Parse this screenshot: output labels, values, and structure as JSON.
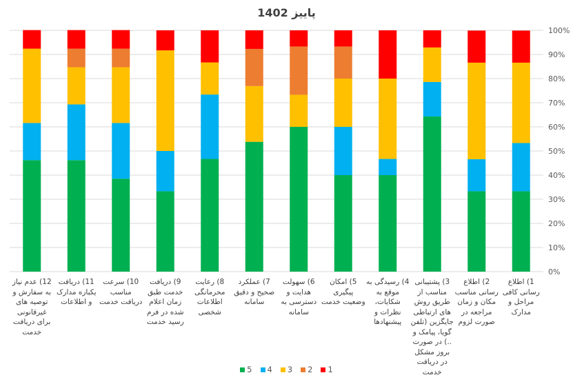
{
  "chart_data": {
    "type": "bar",
    "stacked": true,
    "percent_stacked": true,
    "title": "پاییز 1402",
    "xlabel": "",
    "ylabel": "",
    "ylim": [
      0,
      100
    ],
    "y_ticks": [
      "0%",
      "10%",
      "20%",
      "30%",
      "40%",
      "50%",
      "60%",
      "70%",
      "80%",
      "90%",
      "100%"
    ],
    "y_axis_position": "right",
    "grid": true,
    "legend_position": "bottom",
    "categories": [
      "12) عدم نیاز به سفارش و توصیه های غیرقانونی برای دریافت خدمت",
      "11) دریافت یکباره مدارک و اطلاعات",
      "10) سرعت مناسب دریافت خدمت",
      "9) دریافت خدمت طبق زمان اعلام شده در فرم رسید خدمت",
      "8) رعایت محرمانگی اطلاعات شخصی",
      "7) عملکرد صحیح و دقیق سامانه",
      "6) سهولت هدایت و دسترسی به سامانه",
      "5) امکان پیگیری وضعیت خدمت",
      "4) رسیدگی به موقع به شکایات، نظرات و پیشنهادها",
      "3) پشتیبانی مناسب از طریق روش های ارتباطی جایگزین (تلفن گویا، پیامک و ..) در صورت بروز مشکل در دریافت خدمت",
      "2) اطلاع رسانی مناسب مکان و زمان مراجعه در صورت لزوم",
      "1) اطلاع رسانی کافی مراحل و مدارک"
    ],
    "series": [
      {
        "name": "5",
        "color": "#00B050",
        "values": [
          46.2,
          46.2,
          38.5,
          33.3,
          46.7,
          53.8,
          60.0,
          40.0,
          40.0,
          64.3,
          33.3,
          33.3
        ]
      },
      {
        "name": "4",
        "color": "#00B0F0",
        "values": [
          15.4,
          23.1,
          23.1,
          16.7,
          26.7,
          0,
          0,
          20.0,
          6.7,
          14.3,
          13.3,
          20.0
        ]
      },
      {
        "name": "3",
        "color": "#FFC000",
        "values": [
          30.8,
          15.4,
          23.1,
          41.7,
          13.3,
          23.1,
          13.3,
          20.0,
          33.3,
          14.3,
          40.0,
          33.3
        ]
      },
      {
        "name": "2",
        "color": "#ED7D31",
        "values": [
          0,
          7.7,
          7.7,
          0,
          0,
          15.4,
          20.0,
          13.3,
          0,
          0,
          0,
          0
        ]
      },
      {
        "name": "1",
        "color": "#FF0000",
        "values": [
          7.7,
          7.7,
          7.7,
          8.3,
          13.3,
          7.7,
          6.7,
          6.7,
          20.0,
          7.1,
          13.3,
          13.3
        ]
      }
    ],
    "legend": [
      "5",
      "4",
      "3",
      "2",
      "1"
    ]
  }
}
